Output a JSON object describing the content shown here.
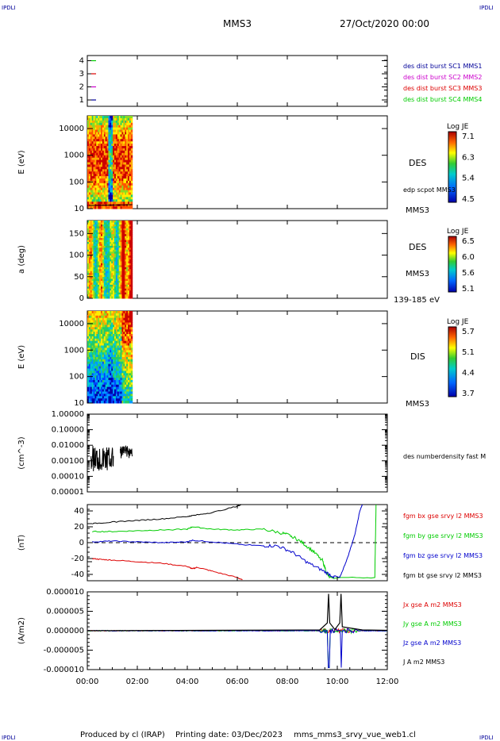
{
  "header": {
    "corner_tl": "IPDLI",
    "corner_tr": "IPDLI",
    "corner_bl": "IPDLI",
    "corner_br": "IPDLI",
    "spacecraft": "MMS3",
    "datetime": "27/Oct/2020 00:00"
  },
  "footer": {
    "produced_by": "Produced by cl (IRAP)",
    "printing_date": "Printing date: 03/Dec/2023",
    "filename": "mms_mms3_srvy_vue_web1.cl"
  },
  "colors": {
    "black": "#000000",
    "red": "#dd0000",
    "green": "#00cc00",
    "blue": "#0000cc",
    "magenta": "#cc00cc",
    "navy": "#000099"
  },
  "x_axis": {
    "ticks": [
      "00:00",
      "02:00",
      "04:00",
      "06:00",
      "08:00",
      "10:00",
      "12:00"
    ],
    "range_hours": [
      0,
      12
    ]
  },
  "chart_data": [
    {
      "type": "line",
      "panel": "availability",
      "yticks": [
        "1",
        "2",
        "3",
        "4"
      ],
      "series": [
        {
          "name": "des dist burst SC1 MMS1",
          "color": "#000099",
          "level": 1
        },
        {
          "name": "des dist burst SC2 MMS2",
          "color": "#cc00cc",
          "level": 2
        },
        {
          "name": "des dist burst SC3 MMS3",
          "color": "#dd0000",
          "level": 3
        },
        {
          "name": "des dist burst SC4 MMS4",
          "color": "#00cc00",
          "level": 4
        }
      ],
      "data_interval_hours": [
        0.0,
        0.35
      ]
    },
    {
      "type": "heatmap",
      "panel": "des-energy",
      "ylabel": "E (eV)",
      "yticks": [
        "10",
        "100",
        "1000",
        "10000"
      ],
      "scale": "log",
      "ylim": [
        10,
        30000
      ],
      "label": "DES",
      "overlay_label": "edp scpot MMS3",
      "bottom_label": "MMS3",
      "colorbar": {
        "title": "Log JE",
        "ticks": [
          "7.1",
          "6.3",
          "5.4",
          "4.5"
        ],
        "range": [
          4.5,
          7.1
        ]
      },
      "data_interval_hours": [
        0.0,
        1.8
      ]
    },
    {
      "type": "heatmap",
      "panel": "des-pitch-angle",
      "ylabel": "a (deg)",
      "yticks": [
        "0",
        "50",
        "100",
        "150"
      ],
      "ylim": [
        0,
        180
      ],
      "label": "DES",
      "sub_label": "MMS3",
      "bottom_label": "139-185 eV",
      "colorbar": {
        "title": "Log JE",
        "ticks": [
          "6.5",
          "6.0",
          "5.6",
          "5.1"
        ],
        "range": [
          5.1,
          6.5
        ]
      },
      "data_interval_hours": [
        0.0,
        1.8
      ]
    },
    {
      "type": "heatmap",
      "panel": "dis-energy",
      "ylabel": "E (eV)",
      "yticks": [
        "10",
        "100",
        "1000",
        "10000"
      ],
      "scale": "log",
      "ylim": [
        10,
        30000
      ],
      "label": "DIS",
      "bottom_label": "MMS3",
      "colorbar": {
        "title": "Log JE",
        "ticks": [
          "5.7",
          "5.1",
          "4.4",
          "3.7"
        ],
        "range": [
          3.7,
          5.7
        ]
      },
      "data_interval_hours": [
        0.0,
        1.8
      ]
    },
    {
      "type": "line",
      "panel": "density",
      "ylabel": "(cm^-3)",
      "yticks": [
        "0.00001",
        "0.00010",
        "0.00100",
        "0.01000",
        "0.10000",
        "1.00000"
      ],
      "scale": "log",
      "ylim": [
        1e-05,
        1.0
      ],
      "series": [
        {
          "name": "des numberdensity fast M",
          "color": "#000000"
        }
      ],
      "data_interval_hours": [
        0.15,
        1.8
      ]
    },
    {
      "type": "line",
      "panel": "magnetic-field",
      "ylabel": "(nT)",
      "yticks": [
        "-40",
        "-20",
        "0",
        "20",
        "40"
      ],
      "ylim": [
        -48,
        48
      ],
      "series": [
        {
          "name": "fgm bx gse srvy l2 MMS3",
          "color": "#dd0000",
          "x": [
            0.2,
            0.5,
            1.0,
            2.0,
            3.0,
            4.0,
            4.2,
            4.4,
            5.0,
            6.0,
            6.2
          ],
          "values": [
            -20,
            -21,
            -22,
            -24,
            -26,
            -30,
            -33,
            -31,
            -36,
            -44,
            -47
          ]
        },
        {
          "name": "fgm by gse srvy l2 MMS3",
          "color": "#00cc00",
          "x": [
            0.2,
            1.0,
            2.0,
            3.0,
            4.0,
            4.2,
            5.0,
            6.0,
            7.0,
            7.8,
            8.2,
            8.6,
            9.0,
            9.4,
            9.6,
            9.7,
            11.5,
            11.55
          ],
          "values": [
            14,
            14,
            15,
            16,
            17,
            20,
            17,
            16,
            17,
            12,
            8,
            0,
            -10,
            -22,
            -40,
            -44,
            -44,
            48
          ]
        },
        {
          "name": "fgm bz gse srvy l2 MMS3",
          "color": "#0000cc",
          "x": [
            0.2,
            1.0,
            2.0,
            3.0,
            4.0,
            4.2,
            5.0,
            6.0,
            7.0,
            7.6,
            8.2,
            8.8,
            9.4,
            9.8,
            10.1,
            10.4,
            10.7,
            10.9,
            11.0
          ],
          "values": [
            1,
            2,
            1,
            0,
            1,
            3,
            1,
            -2,
            -4,
            -4,
            -12,
            -25,
            -35,
            -42,
            -44,
            -20,
            10,
            40,
            48
          ]
        },
        {
          "name": "fgm bt gse srvy l2 MMS3",
          "color": "#000000",
          "x": [
            0.2,
            1.0,
            2.0,
            3.0,
            4.0,
            4.2,
            5.0,
            6.0,
            6.15
          ],
          "values": [
            24,
            26,
            28,
            30,
            33,
            34,
            38,
            46,
            48
          ]
        }
      ],
      "zero_dashed": true
    },
    {
      "type": "line",
      "panel": "current-density",
      "ylabel": "(A/m2)",
      "yticks": [
        "-0.000010",
        "-0.000005",
        "0.000000",
        "0.000005",
        "0.000010"
      ],
      "ylim": [
        -1e-05,
        1e-05
      ],
      "series": [
        {
          "name": "Jx gse A m2 MMS3",
          "color": "#dd0000"
        },
        {
          "name": "Jy gse A m2 MMS3",
          "color": "#00cc00"
        },
        {
          "name": "Jz gse A m2 MMS3",
          "color": "#0000cc"
        },
        {
          "name": "J A m2 MMS3",
          "color": "#000000",
          "x": [
            0.0,
            9.3,
            9.6,
            9.65,
            9.7,
            9.9,
            10.1,
            10.15,
            10.2,
            11.0,
            12.0
          ],
          "values": [
            0.0,
            2e-07,
            2e-06,
            9.5e-06,
            2e-06,
            3e-07,
            2e-06,
            9.5e-06,
            1e-06,
            2e-07,
            1e-07
          ]
        }
      ]
    }
  ]
}
